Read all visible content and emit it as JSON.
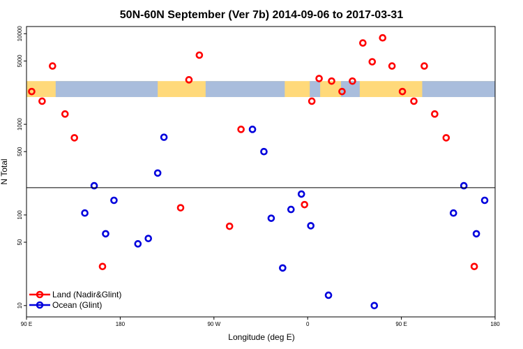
{
  "chart_data": {
    "type": "scatter",
    "title": "50N-60N September (Ver 7b)   2014-09-06 to 2017-03-31",
    "xlabel": "Longitude (deg E)",
    "ylabel": "N Total",
    "y_scale": "log",
    "x_ticks": [
      {
        "value": 90,
        "label": "90 E"
      },
      {
        "value": 180,
        "label": "180"
      },
      {
        "value": 270,
        "label": "90 W"
      },
      {
        "value": 360,
        "label": "0"
      },
      {
        "value": 450,
        "label": "90 E"
      },
      {
        "value": 540,
        "label": "180"
      }
    ],
    "xlim": [
      90,
      540
    ],
    "y_ticks": [
      {
        "value": 10,
        "label": "10"
      },
      {
        "value": 50,
        "label": "50"
      },
      {
        "value": 100,
        "label": "100"
      },
      {
        "value": 500,
        "label": "500"
      },
      {
        "value": 1000,
        "label": "1000"
      },
      {
        "value": 5000,
        "label": "5000"
      },
      {
        "value": 10000,
        "label": "10000"
      }
    ],
    "ylim": [
      7.5,
      12000
    ],
    "map_strip_range": [
      2000,
      3000
    ],
    "divider_y_value": 200,
    "series": [
      {
        "name": "Land (Nadir&Glint)",
        "color": "#ff0000",
        "points": [
          {
            "x": 95,
            "y": 2300
          },
          {
            "x": 105,
            "y": 1800
          },
          {
            "x": 115,
            "y": 4400
          },
          {
            "x": 127,
            "y": 1300
          },
          {
            "x": 136,
            "y": 710
          },
          {
            "x": 163,
            "y": 27
          },
          {
            "x": 238,
            "y": 120
          },
          {
            "x": 246,
            "y": 3100
          },
          {
            "x": 256,
            "y": 5800
          },
          {
            "x": 285,
            "y": 75
          },
          {
            "x": 296,
            "y": 880
          },
          {
            "x": 357,
            "y": 130
          },
          {
            "x": 364,
            "y": 1800
          },
          {
            "x": 371,
            "y": 3200
          },
          {
            "x": 383,
            "y": 3000
          },
          {
            "x": 393,
            "y": 2300
          },
          {
            "x": 403,
            "y": 3000
          },
          {
            "x": 413,
            "y": 7900
          },
          {
            "x": 422,
            "y": 4900
          },
          {
            "x": 432,
            "y": 9000
          },
          {
            "x": 441,
            "y": 4400
          },
          {
            "x": 451,
            "y": 2300
          },
          {
            "x": 462,
            "y": 1800
          },
          {
            "x": 472,
            "y": 4400
          },
          {
            "x": 482,
            "y": 1300
          },
          {
            "x": 493,
            "y": 710
          },
          {
            "x": 520,
            "y": 27
          }
        ]
      },
      {
        "name": "Ocean (Glint)",
        "color": "#0000dd",
        "points": [
          {
            "x": 146,
            "y": 105
          },
          {
            "x": 155,
            "y": 210
          },
          {
            "x": 166,
            "y": 62
          },
          {
            "x": 174,
            "y": 145
          },
          {
            "x": 197,
            "y": 48
          },
          {
            "x": 207,
            "y": 55
          },
          {
            "x": 216,
            "y": 290
          },
          {
            "x": 222,
            "y": 720
          },
          {
            "x": 307,
            "y": 880
          },
          {
            "x": 318,
            "y": 500
          },
          {
            "x": 325,
            "y": 92
          },
          {
            "x": 336,
            "y": 26
          },
          {
            "x": 344,
            "y": 115
          },
          {
            "x": 354,
            "y": 170
          },
          {
            "x": 363,
            "y": 76
          },
          {
            "x": 380,
            "y": 13
          },
          {
            "x": 424,
            "y": 10
          },
          {
            "x": 500,
            "y": 105
          },
          {
            "x": 510,
            "y": 210
          },
          {
            "x": 522,
            "y": 62
          },
          {
            "x": 530,
            "y": 145
          }
        ]
      }
    ],
    "legend_position": "bottom-left"
  }
}
